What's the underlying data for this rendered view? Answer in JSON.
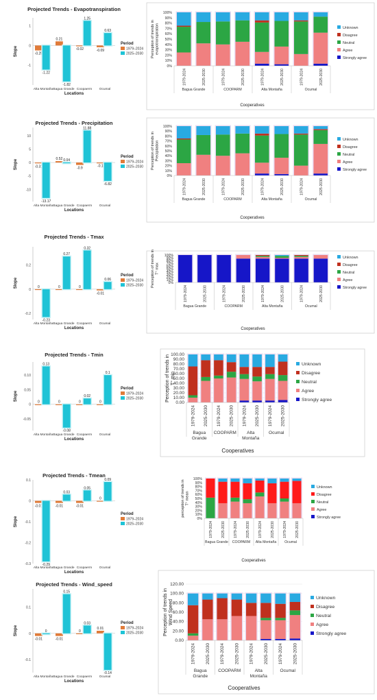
{
  "legend_labels": {
    "unknown": "Unknown",
    "disagree": "Disagree",
    "neutral": "Neutral",
    "agree": "Agree",
    "strongly_agree": "Strongly agree"
  },
  "colors": {
    "p1979": "#e07b39",
    "p2025": "#1fc3d6",
    "unknown": "#29aae1",
    "disagree": "#c0301e",
    "neutral": "#2ca644",
    "agree": "#f08080",
    "strongly_agree": "#1616c8",
    "disagree_tmean": "#ff1a1a"
  },
  "chart_data": [
    {
      "type": "bar",
      "title": "Projected Trends - Evapotranspiration",
      "xlabel": "Locations",
      "ylabel": "Slope",
      "legend_title": "Period",
      "legend_position": "right",
      "categories": [
        "Alta Montaña",
        "Bagua Grande",
        "Coopaerm",
        "Ocumal"
      ],
      "series": [
        {
          "name": "1979–2024",
          "values": [
            -0.25,
            0.21,
            -0.02,
            -0.09
          ]
        },
        {
          "name": "2025–2030",
          "values": [
            -1.22,
            -1.82,
            1.25,
            0.63
          ]
        }
      ],
      "data_labels": [
        [
          "-0.25",
          "0.21",
          "-0.02",
          "-0.09"
        ],
        [
          "-1.22",
          "-1.82",
          "1.25",
          "0.63"
        ]
      ],
      "ylim": [
        -2.0,
        1.4
      ],
      "yticks": [
        1,
        0,
        -1
      ],
      "ytick_labels": [
        "1",
        "0",
        "-1"
      ]
    },
    {
      "type": "bar",
      "title": "Projected Trends - Precipitation",
      "xlabel": "Locations",
      "ylabel": "Slope",
      "legend_title": "Period",
      "legend_position": "right",
      "categories": [
        "Alta Montaña",
        "Bagua Grande",
        "Coopaerm",
        "Ocumal"
      ],
      "series": [
        {
          "name": "1979–2024",
          "values": [
            -0.31,
            0.52,
            -0.9,
            -0.1
          ]
        },
        {
          "name": "2025–2030",
          "values": [
            -13.17,
            0.04,
            11.88,
            -6.82
          ]
        }
      ],
      "data_labels": [
        [
          "-0.31",
          "0.52",
          "-0.9",
          "-0.1"
        ],
        [
          "-13.17",
          "0.04",
          "11.88",
          "-6.82"
        ]
      ],
      "ylim": [
        -14.5,
        13
      ],
      "yticks": [
        10,
        5,
        0,
        -5,
        -10
      ],
      "ytick_labels": [
        "10",
        "5",
        "0",
        "-5",
        "-10"
      ]
    },
    {
      "type": "bar",
      "title": "Projected Trends - Tmax",
      "xlabel": "Locations",
      "ylabel": "Slope",
      "legend_title": "Period",
      "legend_position": "right",
      "categories": [
        "Alta Montaña",
        "Bagua Grande",
        "Coopaerm",
        "Ocumal"
      ],
      "series": [
        {
          "name": "1979–2024",
          "values": [
            0,
            0,
            0,
            -0.01
          ]
        },
        {
          "name": "2025–2030",
          "values": [
            -0.23,
            0.27,
            0.32,
            0.06
          ]
        }
      ],
      "data_labels": [
        [
          "0",
          "0",
          "0",
          "-0.01"
        ],
        [
          "-0.23",
          "0.27",
          "0.32",
          "0.06"
        ]
      ],
      "ylim": [
        -0.25,
        0.35
      ],
      "yticks": [
        0.2,
        0,
        -0.2
      ],
      "ytick_labels": [
        "0.2",
        "0",
        "-0.2"
      ]
    },
    {
      "type": "bar",
      "title": "Projected Trends - Tmin",
      "xlabel": "Locations",
      "ylabel": "Slope",
      "legend_title": "Period",
      "legend_position": "right",
      "categories": [
        "Alta Montaña",
        "Bagua Grande",
        "Coopaerm",
        "Ocumal"
      ],
      "series": [
        {
          "name": "1979–2024",
          "values": [
            0,
            0,
            0,
            0
          ]
        },
        {
          "name": "2025–2030",
          "values": [
            0.13,
            -0.08,
            0.02,
            0.1
          ]
        }
      ],
      "data_labels": [
        [
          "0",
          "0",
          "0",
          "0"
        ],
        [
          "0.13",
          "-0.08",
          "0.02",
          "0.1"
        ]
      ],
      "ylim": [
        -0.09,
        0.145
      ],
      "yticks": [
        0.1,
        0.05,
        0,
        -0.05
      ],
      "ytick_labels": [
        "0.10",
        "0.05",
        "0",
        "-0.05"
      ]
    },
    {
      "type": "bar",
      "title": "Projected Trends - Tmean",
      "xlabel": "Locations",
      "ylabel": "Slope",
      "legend_title": "Period",
      "legend_position": "right",
      "categories": [
        "Alta Montaña",
        "Bagua Grande",
        "Coopaerm",
        "Ocumal"
      ],
      "series": [
        {
          "name": "1979–2024",
          "values": [
            -0.01,
            -0.01,
            -0.01,
            0
          ]
        },
        {
          "name": "2025–2030",
          "values": [
            -0.29,
            0.03,
            0.05,
            0.09
          ]
        }
      ],
      "data_labels": [
        [
          "-0.01",
          "-0.01",
          "-0.01",
          "0"
        ],
        [
          "-0.29",
          "0.03",
          "0.05",
          "0.09"
        ]
      ],
      "ylim": [
        -0.3,
        0.1
      ],
      "yticks": [
        0.1,
        0,
        -0.1,
        -0.2,
        -0.3
      ],
      "ytick_labels": [
        "0.1",
        "0",
        "-0.1",
        "-0.2",
        "-0.3"
      ]
    },
    {
      "type": "bar",
      "title": "Projected Trends - Wind_speed",
      "xlabel": "Locations",
      "ylabel": "Slope",
      "legend_title": "Period",
      "legend_position": "right",
      "categories": [
        "Alta Montaña",
        "Bagua Grande",
        "Coopaerm",
        "Ocumal"
      ],
      "series": [
        {
          "name": "1979–2024",
          "values": [
            -0.01,
            -0.01,
            0,
            0.01
          ]
        },
        {
          "name": "2025–2030",
          "values": [
            0,
            0.15,
            0.03,
            -0.14
          ]
        }
      ],
      "data_labels": [
        [
          "-0.01",
          "-0.01",
          "0",
          "0.01"
        ],
        [
          "0",
          "0.15",
          "0.03",
          "-0.14"
        ]
      ],
      "ylim": [
        -0.15,
        0.17
      ],
      "yticks": [
        0.1,
        0,
        -0.1
      ],
      "ytick_labels": [
        "0.1",
        "0",
        "-0.1"
      ]
    },
    {
      "type": "bar",
      "stacked": true,
      "ylabel": "Perception of trends in evapotranspiration",
      "xlabel": "Cooperatives",
      "legend_position": "right",
      "bar_labels": [
        "1979-2024",
        "2025-2030",
        "1979-2024",
        "2025-2030",
        "1979-2024",
        "2025-2030",
        "1979-2024",
        "2025-2030"
      ],
      "groups": [
        "Bagua Grande",
        "COOPARM",
        "Alta Montaña",
        "Ocumal"
      ],
      "series": [
        {
          "name": "Strongly agree",
          "values": [
            0,
            0,
            0,
            0,
            4,
            3,
            0,
            4
          ]
        },
        {
          "name": "Agree",
          "values": [
            25,
            42,
            40,
            45,
            22,
            33,
            22,
            58
          ]
        },
        {
          "name": "Neutral",
          "values": [
            48,
            40,
            43,
            40,
            55,
            48,
            61,
            30
          ]
        },
        {
          "name": "Disagree",
          "values": [
            2,
            0,
            0,
            0,
            4,
            0,
            2,
            0
          ]
        },
        {
          "name": "Unknown",
          "values": [
            25,
            18,
            17,
            15,
            15,
            16,
            15,
            8
          ]
        }
      ],
      "yticks": [
        "0%",
        "10%",
        "20%",
        "30%",
        "40%",
        "50%",
        "60%",
        "70%",
        "80%",
        "90%",
        "100%"
      ]
    },
    {
      "type": "bar",
      "stacked": true,
      "ylabel": "Perception of trends in Precipitation",
      "xlabel": "Cooperatives",
      "legend_position": "right",
      "bar_labels": [
        "1979-2024",
        "2025-2030",
        "1979-2024",
        "2025-2030",
        "1979-2024",
        "2025-2030",
        "1979-2024",
        "2025-2030"
      ],
      "groups": [
        "Bagua Grande",
        "COOPARM",
        "Alta Montaña",
        "Ocumal"
      ],
      "series": [
        {
          "name": "Strongly agree",
          "values": [
            0,
            0,
            0,
            0,
            4,
            3,
            0,
            4
          ]
        },
        {
          "name": "Agree",
          "values": [
            25,
            42,
            40,
            45,
            22,
            33,
            20,
            60
          ]
        },
        {
          "name": "Neutral",
          "values": [
            48,
            40,
            43,
            40,
            55,
            48,
            63,
            28
          ]
        },
        {
          "name": "Disagree",
          "values": [
            2,
            0,
            0,
            0,
            4,
            0,
            2,
            2
          ]
        },
        {
          "name": "Unknown",
          "values": [
            25,
            18,
            17,
            15,
            15,
            16,
            15,
            6
          ]
        }
      ],
      "yticks": [
        "0%",
        "10%",
        "20%",
        "30%",
        "40%",
        "50%",
        "60%",
        "70%",
        "80%",
        "90%",
        "100%"
      ]
    },
    {
      "type": "bar",
      "stacked": true,
      "ylabel": "Perception of trends in T° max",
      "xlabel": "Cooperatives",
      "legend_position": "right",
      "bar_labels": [
        "1979-2024",
        "2025-2030",
        "1979-2024",
        "2025-2030",
        "1979-2024",
        "2025-2030",
        "1979-2024",
        "2025-2030"
      ],
      "groups": [
        "Bagua Grande",
        "COOPARM",
        "Alta Montaña",
        "Ocumal"
      ],
      "series": [
        {
          "name": "Strongly agree",
          "values": [
            100,
            100,
            100,
            87,
            87,
            87,
            87,
            87
          ]
        },
        {
          "name": "Agree",
          "values": [
            0,
            0,
            0,
            13,
            6,
            3,
            6,
            13
          ]
        },
        {
          "name": "Neutral",
          "values": [
            0,
            0,
            0,
            0,
            4,
            7,
            4,
            0
          ]
        },
        {
          "name": "Disagree",
          "values": [
            0,
            0,
            0,
            0,
            3,
            0,
            3,
            0
          ]
        },
        {
          "name": "Unknown",
          "values": [
            0,
            0,
            0,
            0,
            0,
            3,
            0,
            0
          ]
        }
      ],
      "yticks": [
        "0%",
        "10%",
        "20%",
        "30%",
        "40%",
        "50%",
        "60%",
        "70%",
        "80%",
        "90%",
        "100%"
      ]
    },
    {
      "type": "bar",
      "stacked": true,
      "ylabel": "Perception of trends in T° min",
      "xlabel": "Cooperatives",
      "legend_position": "right",
      "bar_labels": [
        "1979-2024",
        "2025-2030",
        "1979-2024",
        "2025-2030",
        "1979-2024",
        "2025-2030",
        "1979-2024",
        "2025-2030"
      ],
      "groups": [
        "Bagua Grande",
        "COOPARM",
        "Alta Montaña",
        "Ocumal"
      ],
      "series": [
        {
          "name": "Strongly agree",
          "values": [
            0,
            0,
            0,
            0,
            4,
            4,
            4,
            5
          ]
        },
        {
          "name": "Agree",
          "values": [
            10,
            45,
            50,
            52,
            45,
            40,
            45,
            40
          ]
        },
        {
          "name": "Neutral",
          "values": [
            5,
            8,
            6,
            12,
            10,
            10,
            10,
            12
          ]
        },
        {
          "name": "Disagree",
          "values": [
            60,
            35,
            32,
            20,
            15,
            20,
            15,
            28
          ]
        },
        {
          "name": "Unknown",
          "values": [
            25,
            12,
            12,
            16,
            26,
            26,
            26,
            15
          ]
        }
      ],
      "yticks": [
        "0.00",
        "10.00",
        "20.00",
        "30.00",
        "40.00",
        "50.00",
        "60.00",
        "70.00",
        "80.00",
        "90.00",
        "100.00"
      ]
    },
    {
      "type": "bar",
      "stacked": true,
      "ylabel": "perception of trends in T° mean",
      "xlabel": "Cooperatives",
      "legend_position": "right",
      "bar_labels": [
        "1979-2024",
        "2025-2030",
        "1979-2024",
        "2025-2030",
        "1979-2024",
        "2025-2030",
        "1979-2024",
        "2025-2030"
      ],
      "groups": [
        "Bagua Grande",
        "COOPARM",
        "Alta Montaña",
        "Ocumal"
      ],
      "series": [
        {
          "name": "Strongly agree",
          "values": [
            0,
            0,
            0,
            0,
            0,
            0,
            0,
            0
          ]
        },
        {
          "name": "Agree",
          "values": [
            0,
            38,
            42,
            38,
            55,
            38,
            42,
            38
          ]
        },
        {
          "name": "Neutral",
          "values": [
            52,
            0,
            10,
            10,
            10,
            0,
            8,
            0
          ]
        },
        {
          "name": "Disagree",
          "values": [
            48,
            54,
            40,
            40,
            30,
            50,
            42,
            56
          ]
        },
        {
          "name": "Unknown",
          "values": [
            0,
            8,
            8,
            12,
            5,
            12,
            8,
            6
          ]
        }
      ],
      "yticks": [
        "0%",
        "10%",
        "20%",
        "30%",
        "40%",
        "50%",
        "60%",
        "70%",
        "80%",
        "90%",
        "100%"
      ]
    },
    {
      "type": "bar",
      "stacked": true,
      "ylabel": "Perception of trends in Wind Speed",
      "xlabel": "Cooperatives",
      "legend_position": "right",
      "bar_labels": [
        "1979-2024",
        "2025-2030",
        "1979-2024",
        "2025-2030",
        "1979-2024",
        "2025-2030",
        "1979-2024",
        "2025-2030"
      ],
      "groups": [
        "Bagua Grande",
        "COOPARM",
        "Alta Montaña",
        "Ocumal"
      ],
      "series": [
        {
          "name": "Strongly agree",
          "values": [
            0,
            0,
            0,
            0,
            0,
            3,
            3,
            4
          ]
        },
        {
          "name": "Agree",
          "values": [
            10,
            45,
            45,
            52,
            52,
            40,
            40,
            50
          ]
        },
        {
          "name": "Neutral",
          "values": [
            5,
            0,
            0,
            0,
            0,
            5,
            5,
            10
          ]
        },
        {
          "name": "Disagree",
          "values": [
            60,
            42,
            45,
            35,
            28,
            32,
            30,
            18
          ]
        },
        {
          "name": "Unknown",
          "values": [
            25,
            13,
            10,
            13,
            20,
            20,
            22,
            18
          ]
        }
      ],
      "yticks": [
        "0.00",
        "20.00",
        "40.00",
        "60.00",
        "80.00",
        "100.00",
        "120.00"
      ]
    }
  ]
}
